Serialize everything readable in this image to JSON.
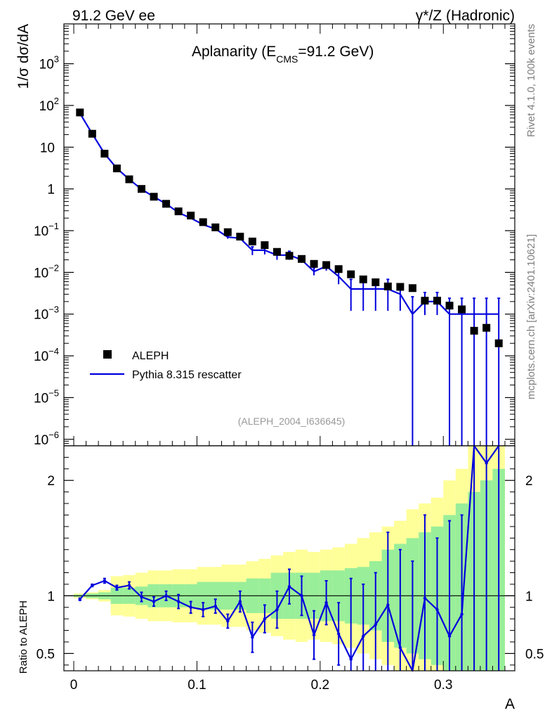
{
  "header": {
    "left_label": "91.2 GeV ee",
    "right_label": "γ*/Z (Hadronic)"
  },
  "side_labels": {
    "rivet": "Rivet 4.1.0,  100k events",
    "mcplots": "mcplots.cern.ch [arXiv:2401.10621]"
  },
  "chart_data": {
    "type": "scatter",
    "title": "Aplanarity (E",
    "title_sub": "CMS",
    "title_tail": "=91.2 GeV)",
    "analysis_tag": "(ALEPH_2004_I636645)",
    "xlabel": "A",
    "ylabel": "1/σ  dσ/dA",
    "ratio_ylabel": "Ratio to ALEPH",
    "xlim": [
      -0.008,
      0.358
    ],
    "ylim": [
      7e-07,
      9000
    ],
    "ratio_ylim": [
      0.35,
      2.3
    ],
    "x_ticks": [
      {
        "v": 0,
        "label": "0"
      },
      {
        "v": 0.1,
        "label": "0.1"
      },
      {
        "v": 0.2,
        "label": "0.2"
      },
      {
        "v": 0.3,
        "label": "0.3"
      }
    ],
    "y_ticks": [
      {
        "v": 1000,
        "label": "10",
        "exp": "3"
      },
      {
        "v": 100,
        "label": "10",
        "exp": "2"
      },
      {
        "v": 10,
        "label": "10",
        "exp": ""
      },
      {
        "v": 1,
        "label": "1",
        "exp": ""
      },
      {
        "v": 0.1,
        "label": "10",
        "exp": "−1"
      },
      {
        "v": 0.01,
        "label": "10",
        "exp": "−2"
      },
      {
        "v": 0.001,
        "label": "10",
        "exp": "−3"
      },
      {
        "v": 0.0001,
        "label": "10",
        "exp": "−4"
      },
      {
        "v": 1e-05,
        "label": "10",
        "exp": "−5"
      },
      {
        "v": 1e-06,
        "label": "10",
        "exp": "−6"
      }
    ],
    "ratio_ticks": [
      {
        "v": 0.5,
        "label": "0.5"
      },
      {
        "v": 1,
        "label": "1"
      },
      {
        "v": 2,
        "label": "2"
      }
    ],
    "legend": [
      {
        "name": "ALEPH",
        "marker": "square",
        "color": "#000000"
      },
      {
        "name": "Pythia 8.315 rescatter",
        "marker": "line",
        "color": "#0000dd"
      }
    ],
    "bin_edges": [
      0,
      0.01,
      0.02,
      0.03,
      0.04,
      0.05,
      0.06,
      0.07,
      0.08,
      0.09,
      0.1,
      0.11,
      0.12,
      0.13,
      0.14,
      0.15,
      0.16,
      0.17,
      0.18,
      0.19,
      0.2,
      0.21,
      0.22,
      0.23,
      0.24,
      0.25,
      0.26,
      0.27,
      0.28,
      0.29,
      0.3,
      0.31,
      0.32,
      0.33,
      0.34,
      0.35
    ],
    "data": {
      "name": "ALEPH",
      "x": [
        0.005,
        0.015,
        0.025,
        0.035,
        0.045,
        0.055,
        0.065,
        0.075,
        0.085,
        0.095,
        0.105,
        0.115,
        0.125,
        0.135,
        0.145,
        0.155,
        0.165,
        0.175,
        0.185,
        0.195,
        0.205,
        0.215,
        0.225,
        0.235,
        0.245,
        0.255,
        0.265,
        0.275,
        0.285,
        0.295,
        0.305,
        0.315,
        0.325,
        0.335,
        0.345
      ],
      "y": [
        68,
        21,
        7,
        3.1,
        1.7,
        1.0,
        0.65,
        0.44,
        0.29,
        0.23,
        0.16,
        0.12,
        0.092,
        0.072,
        0.055,
        0.045,
        0.031,
        0.025,
        0.021,
        0.016,
        0.015,
        0.012,
        0.009,
        0.0068,
        0.0058,
        0.0046,
        0.0045,
        0.0042,
        0.0021,
        0.0021,
        0.0016,
        0.0013,
        0.0004,
        0.00047,
        0.0002
      ]
    },
    "mc": {
      "name": "Pythia 8.315 rescatter",
      "y": [
        65,
        21,
        7,
        3.1,
        1.7,
        0.98,
        0.65,
        0.44,
        0.27,
        0.2,
        0.14,
        0.11,
        0.07,
        0.066,
        0.034,
        0.034,
        0.026,
        0.026,
        0.02,
        0.0105,
        0.014,
        0.008,
        0.004,
        0.004,
        0.004,
        0.004,
        0.003,
        0.001,
        0.002,
        0.002,
        0.001,
        0.001,
        0.001,
        0.001,
        0.001
      ],
      "y_lo": [
        null,
        null,
        null,
        null,
        null,
        null,
        null,
        null,
        null,
        null,
        null,
        null,
        0.064,
        0.061,
        0.026,
        0.027,
        0.02,
        0.02,
        0.017,
        0.0085,
        0.011,
        0.0052,
        0.0012,
        0.0012,
        0.0012,
        0.0012,
        0.0012,
        1e-07,
        0.00095,
        0.00095,
        1e-07,
        1e-07,
        1e-07,
        1e-07,
        1e-07
      ],
      "y_hi": [
        null,
        null,
        null,
        null,
        null,
        null,
        null,
        null,
        null,
        null,
        null,
        null,
        0.076,
        0.071,
        0.041,
        0.041,
        0.032,
        0.032,
        0.024,
        0.013,
        0.017,
        0.0108,
        0.0068,
        0.0068,
        0.0068,
        0.0068,
        0.0052,
        0.0026,
        0.0033,
        0.0033,
        0.0024,
        0.0024,
        0.0024,
        0.0024,
        0.0024
      ]
    },
    "ratio": {
      "values": [
        0.97,
        1.09,
        1.13,
        1.07,
        1.09,
        0.99,
        0.95,
        1.0,
        0.95,
        0.9,
        0.88,
        0.91,
        0.78,
        0.95,
        0.64,
        0.8,
        0.88,
        1.08,
        1.0,
        0.66,
        0.94,
        0.67,
        0.45,
        0.65,
        0.75,
        0.92,
        0.55,
        0.2,
        0.98,
        0.88,
        0.65,
        0.84,
        2.8,
        2.15,
        4.0
      ],
      "err_lo": [
        0.96,
        1.08,
        1.11,
        1.05,
        1.06,
        0.95,
        0.91,
        0.96,
        0.89,
        0.85,
        0.82,
        0.85,
        0.72,
        0.86,
        0.51,
        0.68,
        0.72,
        0.93,
        0.83,
        0.45,
        0.75,
        0.4,
        0.3,
        0.3,
        0.3,
        0.3,
        0.3,
        0.3,
        0.3,
        0.3,
        0.3,
        0.3,
        0.3,
        0.3,
        0.3
      ],
      "err_hi": [
        0.98,
        1.1,
        1.15,
        1.09,
        1.12,
        1.03,
        0.99,
        1.04,
        1.01,
        0.95,
        0.94,
        0.97,
        0.84,
        1.04,
        0.77,
        0.92,
        1.04,
        1.23,
        1.17,
        0.87,
        1.13,
        0.94,
        1.15,
        1.1,
        1.2,
        1.55,
        1.4,
        1.3,
        1.7,
        1.5,
        1.65,
        1.7,
        2.3,
        2.3,
        2.3
      ],
      "band_green": [
        [
          0.99,
          1.01
        ],
        [
          0.98,
          1.02
        ],
        [
          0.97,
          1.03
        ],
        [
          0.93,
          1.07
        ],
        [
          0.93,
          1.07
        ],
        [
          0.92,
          1.08
        ],
        [
          0.9,
          1.1
        ],
        [
          0.9,
          1.1
        ],
        [
          0.9,
          1.1
        ],
        [
          0.9,
          1.1
        ],
        [
          0.88,
          1.12
        ],
        [
          0.88,
          1.12
        ],
        [
          0.88,
          1.12
        ],
        [
          0.88,
          1.12
        ],
        [
          0.85,
          1.15
        ],
        [
          0.85,
          1.15
        ],
        [
          0.8,
          1.2
        ],
        [
          0.8,
          1.2
        ],
        [
          0.8,
          1.2
        ],
        [
          0.8,
          1.2
        ],
        [
          0.78,
          1.22
        ],
        [
          0.78,
          1.22
        ],
        [
          0.76,
          1.24
        ],
        [
          0.75,
          1.25
        ],
        [
          0.7,
          1.3
        ],
        [
          0.6,
          1.4
        ],
        [
          0.55,
          1.45
        ],
        [
          0.5,
          1.5
        ],
        [
          0.45,
          1.55
        ],
        [
          0.4,
          1.6
        ],
        [
          0.35,
          1.7
        ],
        [
          0.35,
          1.8
        ],
        [
          0.35,
          1.9
        ],
        [
          0.35,
          2.0
        ],
        [
          0.35,
          2.1
        ]
      ],
      "band_yellow": [
        [
          0.98,
          1.02
        ],
        [
          0.97,
          1.03
        ],
        [
          0.95,
          1.05
        ],
        [
          0.83,
          1.17
        ],
        [
          0.82,
          1.18
        ],
        [
          0.8,
          1.2
        ],
        [
          0.78,
          1.22
        ],
        [
          0.78,
          1.22
        ],
        [
          0.77,
          1.23
        ],
        [
          0.77,
          1.23
        ],
        [
          0.75,
          1.25
        ],
        [
          0.75,
          1.25
        ],
        [
          0.73,
          1.27
        ],
        [
          0.73,
          1.27
        ],
        [
          0.7,
          1.3
        ],
        [
          0.68,
          1.32
        ],
        [
          0.65,
          1.35
        ],
        [
          0.62,
          1.38
        ],
        [
          0.6,
          1.4
        ],
        [
          0.62,
          1.38
        ],
        [
          0.6,
          1.4
        ],
        [
          0.58,
          1.42
        ],
        [
          0.55,
          1.45
        ],
        [
          0.5,
          1.5
        ],
        [
          0.45,
          1.55
        ],
        [
          0.4,
          1.6
        ],
        [
          0.35,
          1.65
        ],
        [
          0.35,
          1.75
        ],
        [
          0.35,
          1.8
        ],
        [
          0.35,
          1.85
        ],
        [
          0.35,
          2.0
        ],
        [
          0.35,
          2.1
        ],
        [
          0.35,
          2.3
        ],
        [
          0.35,
          2.3
        ],
        [
          0.35,
          2.3
        ]
      ]
    },
    "colors": {
      "mc": "#0000dd",
      "data": "#000000",
      "green": "#99ee99",
      "yellow": "#ffff99"
    }
  }
}
